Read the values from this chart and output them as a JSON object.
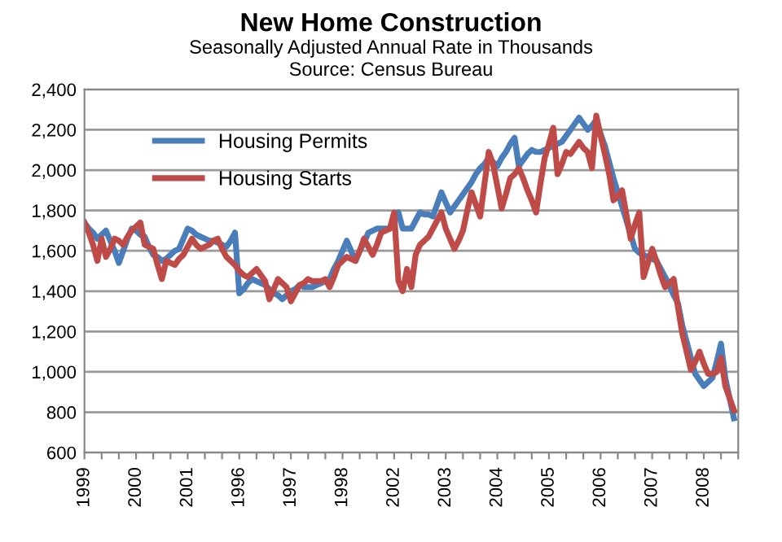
{
  "chart_data": {
    "type": "line",
    "title": "New Home Construction",
    "subtitle": "Seasonally Adjusted Annual Rate in Thousands\nSource: Census Bureau",
    "categories": [
      "1999",
      null,
      null,
      null,
      null,
      null,
      null,
      null,
      null,
      null,
      null,
      null,
      "2000",
      null,
      null,
      null,
      null,
      null,
      null,
      null,
      null,
      null,
      null,
      null,
      "2001",
      null,
      null,
      null,
      null,
      null,
      null,
      null,
      null,
      null,
      null,
      null,
      "1996",
      null,
      null,
      null,
      null,
      null,
      null,
      null,
      null,
      null,
      null,
      null,
      "1997",
      null,
      null,
      null,
      null,
      null,
      null,
      null,
      null,
      null,
      null,
      null,
      "1998",
      null,
      null,
      null,
      null,
      null,
      null,
      null,
      null,
      null,
      null,
      null,
      "2002",
      null,
      null,
      null,
      null,
      null,
      null,
      null,
      null,
      null,
      null,
      null,
      "2003",
      null,
      null,
      null,
      null,
      null,
      null,
      null,
      null,
      null,
      null,
      null,
      "2004",
      null,
      null,
      null,
      null,
      null,
      null,
      null,
      null,
      null,
      null,
      null,
      "2005",
      null,
      null,
      null,
      null,
      null,
      null,
      null,
      null,
      null,
      null,
      null,
      "2006",
      null,
      null,
      null,
      null,
      null,
      null,
      null,
      null,
      null,
      null,
      null,
      "2007",
      null,
      null,
      null,
      null,
      null,
      null,
      null,
      null,
      null,
      null,
      null,
      "2008",
      null,
      null,
      null,
      null,
      null,
      null,
      null
    ],
    "ylim": [
      600,
      2400
    ],
    "yticks": [
      {
        "value": 600,
        "label": "600"
      },
      {
        "value": 800,
        "label": "800"
      },
      {
        "value": 1000,
        "label": "1,000"
      },
      {
        "value": 1200,
        "label": "1,200"
      },
      {
        "value": 1400,
        "label": "1,400"
      },
      {
        "value": 1600,
        "label": "1,600"
      },
      {
        "value": 1800,
        "label": "1,800"
      },
      {
        "value": 2000,
        "label": "2,000"
      },
      {
        "value": 2200,
        "label": "2,200"
      },
      {
        "value": 2400,
        "label": "2,400"
      }
    ],
    "grid": "y",
    "legend": "top left",
    "marker": "none",
    "line_style": "solid",
    "series": [
      {
        "name": "Housing Permits",
        "color": "#4a7ebb",
        "values": [
          1740,
          1710,
          1690,
          1660,
          1680,
          1700,
          1650,
          1600,
          1540,
          1600,
          1660,
          1710,
          1700,
          1680,
          1670,
          1620,
          1580,
          1570,
          1550,
          1560,
          1580,
          1600,
          1610,
          1660,
          1710,
          1700,
          1680,
          1670,
          1660,
          1650,
          1650,
          1640,
          1630,
          1620,
          1650,
          1690,
          1390,
          1410,
          1440,
          1460,
          1450,
          1440,
          1430,
          1410,
          1390,
          1380,
          1360,
          1380,
          1400,
          1410,
          1430,
          1420,
          1420,
          1420,
          1430,
          1440,
          1450,
          1460,
          1510,
          1550,
          1600,
          1650,
          1600,
          1550,
          1600,
          1640,
          1690,
          1700,
          1710,
          1710,
          1710,
          1710,
          1750,
          1790,
          1710,
          1710,
          1710,
          1750,
          1790,
          1780,
          1780,
          1770,
          1830,
          1890,
          1840,
          1790,
          1820,
          1850,
          1880,
          1910,
          1940,
          1980,
          2010,
          2030,
          2060,
          2040,
          2020,
          2060,
          2090,
          2130,
          2160,
          2020,
          2050,
          2080,
          2100,
          2090,
          2090,
          2100,
          2110,
          2120,
          2130,
          2140,
          2170,
          2200,
          2230,
          2260,
          2230,
          2200,
          2220,
          2250,
          2180,
          2120,
          2040,
          1960,
          1890,
          1820,
          1750,
          1680,
          1610,
          1590,
          1580,
          1570,
          1560,
          1550,
          1510,
          1470,
          1430,
          1380,
          1340,
          1230,
          1150,
          1070,
          990,
          960,
          930,
          950,
          970,
          1050,
          1140,
          970,
          870,
          770
        ]
      },
      {
        "name": "Housing Starts",
        "color": "#be4b48",
        "values": [
          1740,
          1690,
          1630,
          1550,
          1660,
          1570,
          1610,
          1660,
          1650,
          1630,
          1670,
          1700,
          1720,
          1740,
          1630,
          1620,
          1610,
          1530,
          1460,
          1550,
          1540,
          1530,
          1560,
          1580,
          1620,
          1660,
          1630,
          1610,
          1620,
          1630,
          1650,
          1660,
          1610,
          1570,
          1550,
          1530,
          1500,
          1480,
          1470,
          1490,
          1510,
          1480,
          1450,
          1360,
          1410,
          1460,
          1440,
          1420,
          1350,
          1390,
          1430,
          1440,
          1460,
          1450,
          1450,
          1450,
          1460,
          1420,
          1470,
          1530,
          1550,
          1570,
          1560,
          1550,
          1600,
          1660,
          1620,
          1580,
          1630,
          1690,
          1700,
          1710,
          1790,
          1450,
          1400,
          1510,
          1420,
          1580,
          1630,
          1650,
          1670,
          1710,
          1750,
          1790,
          1710,
          1660,
          1610,
          1650,
          1700,
          1800,
          1890,
          1830,
          1770,
          1930,
          2090,
          2030,
          1920,
          1810,
          1880,
          1960,
          1980,
          2010,
          1960,
          1900,
          1850,
          1790,
          1930,
          2060,
          2130,
          2210,
          1980,
          2030,
          2090,
          2080,
          2110,
          2140,
          2110,
          2090,
          2010,
          2270,
          2170,
          2080,
          1980,
          1850,
          1870,
          1900,
          1780,
          1660,
          1730,
          1790,
          1470,
          1540,
          1610,
          1550,
          1480,
          1420,
          1440,
          1460,
          1320,
          1190,
          1100,
          1010,
          1050,
          1100,
          1040,
          990,
          990,
          1000,
          1070,
          930,
          870,
          810
        ]
      }
    ]
  }
}
